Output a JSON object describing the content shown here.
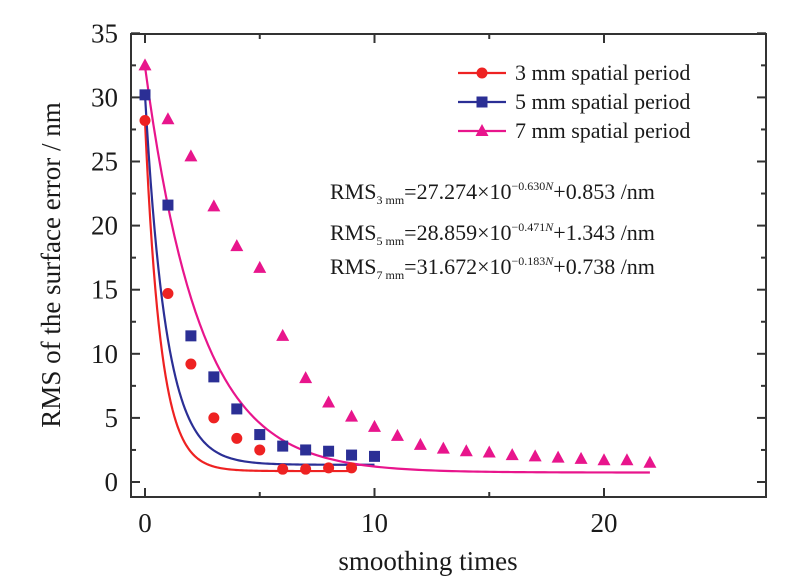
{
  "chart_data": {
    "type": "scatter",
    "title": "",
    "xlabel": "smoothing times",
    "ylabel": "RMS of the surface error / nm",
    "xlim": [
      -1,
      25
    ],
    "ylim": [
      -0.8,
      35
    ],
    "xticks": [
      0,
      10,
      20
    ],
    "xticks_minor": [
      5,
      15
    ],
    "yticks": [
      0,
      5,
      10,
      15,
      20,
      25,
      30,
      35
    ],
    "grid": false,
    "legend_position": "top-right",
    "series": [
      {
        "name": "3 mm spatial period",
        "color": "#ee2222",
        "marker": "circle",
        "x": [
          0,
          1,
          2,
          3,
          4,
          5,
          6,
          7,
          8,
          9
        ],
        "y": [
          28.2,
          14.7,
          9.2,
          5.0,
          3.4,
          2.5,
          1.0,
          1.0,
          1.1,
          1.1
        ],
        "fit": {
          "a": 27.274,
          "b": 0.63,
          "c": 0.853,
          "x_range": [
            0,
            9
          ]
        }
      },
      {
        "name": "5 mm spatial period",
        "color": "#2b2f95",
        "marker": "square",
        "x": [
          0,
          1,
          2,
          3,
          4,
          5,
          6,
          7,
          8,
          9,
          10
        ],
        "y": [
          30.2,
          21.6,
          11.4,
          8.2,
          5.7,
          3.7,
          2.8,
          2.5,
          2.4,
          2.1,
          2.0
        ],
        "fit": {
          "a": 28.859,
          "b": 0.471,
          "c": 1.343,
          "x_range": [
            0,
            10
          ]
        }
      },
      {
        "name": "7 mm spatial period",
        "color": "#e8158c",
        "marker": "triangle",
        "x": [
          0,
          1,
          2,
          3,
          4,
          5,
          6,
          7,
          8,
          9,
          10,
          11,
          12,
          13,
          14,
          15,
          16,
          17,
          18,
          19,
          20,
          21,
          22
        ],
        "y": [
          32.5,
          28.3,
          25.4,
          21.5,
          18.4,
          16.7,
          11.4,
          8.1,
          6.2,
          5.1,
          4.3,
          3.6,
          2.9,
          2.6,
          2.4,
          2.3,
          2.1,
          2.0,
          1.9,
          1.8,
          1.7,
          1.7,
          1.5
        ],
        "fit": {
          "a": 31.672,
          "b": 0.183,
          "c": 0.738,
          "x_range": [
            0,
            22
          ]
        }
      }
    ],
    "annotations": [
      {
        "prefix": "RMS",
        "sub": "3 mm",
        "mid": "=27.274×10",
        "sup": "−0.630",
        "sup_var": "N",
        "suffix": "+0.853 /nm"
      },
      {
        "prefix": "RMS",
        "sub": "5 mm",
        "mid": "=28.859×10",
        "sup": "−0.471",
        "sup_var": "N",
        "suffix": "+1.343 /nm"
      },
      {
        "prefix": "RMS",
        "sub": "7 mm",
        "mid": "=31.672×10",
        "sup": "−0.183",
        "sup_var": "N",
        "suffix": "+0.738 /nm"
      }
    ]
  }
}
